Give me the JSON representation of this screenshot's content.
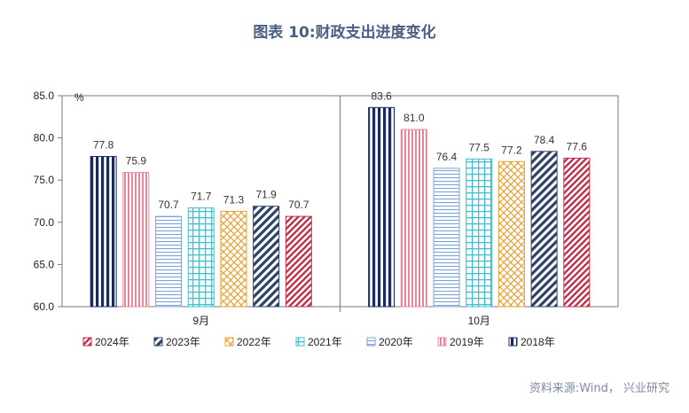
{
  "figure_title": "图表 10:财政支出进度变化",
  "source": "资料来源:Wind， 兴业研究",
  "chart_data": {
    "type": "bar",
    "title": "图表 10:财政支出进度变化",
    "ylabel": "%",
    "xlabel": "",
    "ylim": [
      60,
      85
    ],
    "yticks": [
      "60.0",
      "65.0",
      "70.0",
      "75.0",
      "80.0",
      "85.0"
    ],
    "categories": [
      "9月",
      "10月"
    ],
    "grid": false,
    "legend_position": "bottom",
    "series": [
      {
        "name": "2018年",
        "color": "#1c2a5a",
        "pattern": "vertical-lines",
        "values": [
          77.8,
          83.6
        ]
      },
      {
        "name": "2019年",
        "color": "#e8859a",
        "pattern": "vertical-lines-light",
        "values": [
          75.9,
          81.0
        ]
      },
      {
        "name": "2020年",
        "color": "#7da4d6",
        "pattern": "horizontal-lines",
        "values": [
          70.7,
          76.4
        ]
      },
      {
        "name": "2021年",
        "color": "#3fbfcf",
        "pattern": "grid",
        "values": [
          71.7,
          77.5
        ]
      },
      {
        "name": "2022年",
        "color": "#e8a33a",
        "pattern": "diamond-cross",
        "values": [
          71.3,
          77.2
        ]
      },
      {
        "name": "2023年",
        "color": "#2f4268",
        "pattern": "wide-diagonal",
        "values": [
          71.9,
          78.4
        ]
      },
      {
        "name": "2024年",
        "color": "#c0334d",
        "pattern": "diagonal",
        "values": [
          70.7,
          77.6
        ]
      }
    ],
    "legend_order": [
      "2024年",
      "2023年",
      "2022年",
      "2021年",
      "2020年",
      "2019年",
      "2018年"
    ]
  }
}
